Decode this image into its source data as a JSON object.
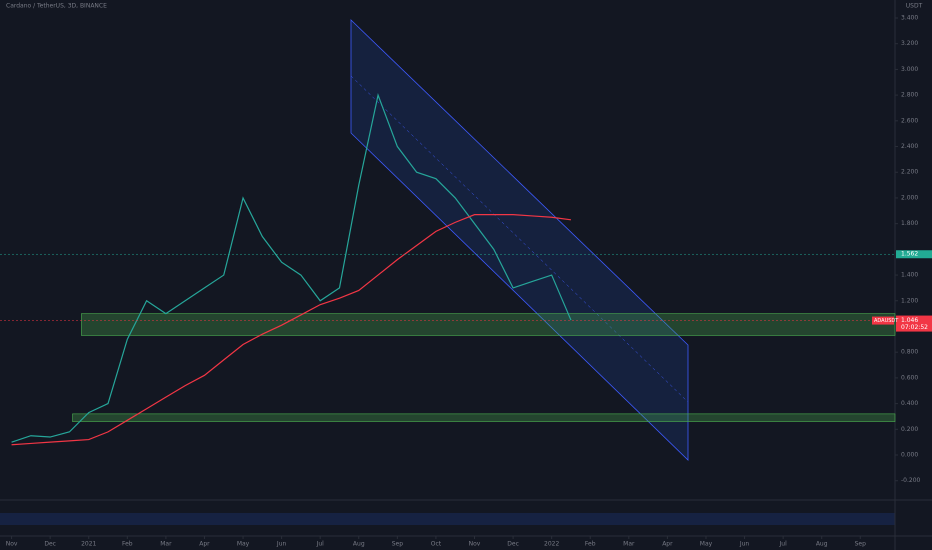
{
  "chart_data": {
    "type": "line",
    "title": "Cardano / TetherUS, 3D, BINANCE",
    "currency": "USDT",
    "x": [
      0,
      0.5,
      1,
      1.5,
      2,
      2.5,
      3,
      3.5,
      4,
      4.5,
      5,
      5.5,
      6,
      6.5,
      7,
      7.5,
      8,
      8.5,
      9,
      9.5,
      10,
      10.5,
      11,
      11.5,
      12,
      12.5,
      13,
      13.5,
      14,
      14.5
    ],
    "xlim": [
      -0.3,
      22.9
    ],
    "xticks": [
      {
        "value": 0,
        "label": "Nov"
      },
      {
        "value": 1,
        "label": "Dec"
      },
      {
        "value": 2,
        "label": "2021"
      },
      {
        "value": 3,
        "label": "Feb"
      },
      {
        "value": 4,
        "label": "Mar"
      },
      {
        "value": 5,
        "label": "Apr"
      },
      {
        "value": 6,
        "label": "May"
      },
      {
        "value": 7,
        "label": "Jun"
      },
      {
        "value": 8,
        "label": "Jul"
      },
      {
        "value": 9,
        "label": "Aug"
      },
      {
        "value": 10,
        "label": "Sep"
      },
      {
        "value": 11,
        "label": "Oct"
      },
      {
        "value": 12,
        "label": "Nov"
      },
      {
        "value": 13,
        "label": "Dec"
      },
      {
        "value": 14,
        "label": "2022"
      },
      {
        "value": 15,
        "label": "Feb"
      },
      {
        "value": 16,
        "label": "Mar"
      },
      {
        "value": 17,
        "label": "Apr"
      },
      {
        "value": 18,
        "label": "May"
      },
      {
        "value": 19,
        "label": "Jun"
      },
      {
        "value": 20,
        "label": "Jul"
      },
      {
        "value": 21,
        "label": "Aug"
      },
      {
        "value": 22,
        "label": "Sep"
      }
    ],
    "ylim": [
      -0.35,
      3.54
    ],
    "yticks": [
      {
        "value": 3.4,
        "label": "3.400"
      },
      {
        "value": 3.2,
        "label": "3.200"
      },
      {
        "value": 3,
        "label": "3.000"
      },
      {
        "value": 2.8,
        "label": "2.800"
      },
      {
        "value": 2.6,
        "label": "2.600"
      },
      {
        "value": 2.4,
        "label": "2.400"
      },
      {
        "value": 2.2,
        "label": "2.200"
      },
      {
        "value": 2,
        "label": "2.000"
      },
      {
        "value": 1.8,
        "label": "1.800"
      },
      {
        "value": 1.4,
        "label": "1.400"
      },
      {
        "value": 1.2,
        "label": "1.200"
      },
      {
        "value": 0.8,
        "label": "0.800"
      },
      {
        "value": 0.6,
        "label": "0.600"
      },
      {
        "value": 0.4,
        "label": "0.400"
      },
      {
        "value": 0.2,
        "label": "0.200"
      },
      {
        "value": 0,
        "label": "0.000"
      },
      {
        "value": -0.2,
        "label": "-0.200"
      }
    ],
    "series": [
      {
        "color": "#26a69a",
        "values": [
          0.1,
          0.15,
          0.14,
          0.18,
          0.33,
          0.4,
          0.9,
          1.2,
          1.1,
          1.2,
          1.3,
          1.4,
          2.0,
          1.7,
          1.5,
          1.4,
          1.2,
          1.3,
          2.1,
          2.8,
          2.4,
          2.2,
          2.15,
          2.0,
          1.8,
          1.6,
          1.3,
          1.35,
          1.4,
          1.05
        ]
      },
      {
        "color": "#f23645",
        "values": [
          0.08,
          0.09,
          0.1,
          0.11,
          0.12,
          0.18,
          0.27,
          0.36,
          0.45,
          0.54,
          0.62,
          0.74,
          0.86,
          0.94,
          1.01,
          1.09,
          1.17,
          1.22,
          1.28,
          1.4,
          1.52,
          1.63,
          1.74,
          1.81,
          1.87,
          1.87,
          1.87,
          1.86,
          1.85,
          1.83
        ]
      }
    ],
    "zones": [
      {
        "x_start": 1.81,
        "range": [
          0.93,
          1.1
        ],
        "color": "#4caf50"
      },
      {
        "x_start": 1.58,
        "range": [
          0.26,
          0.32
        ],
        "color": "#4caf50"
      }
    ],
    "price_tags": [
      {
        "value": 1.562,
        "label": "1.562",
        "color": "#22ab94"
      },
      {
        "value": 1.046,
        "label": "1.046",
        "color": "#f23645"
      }
    ],
    "symbol_tag": "ADAUSDT",
    "countdown": "07:02:52"
  }
}
